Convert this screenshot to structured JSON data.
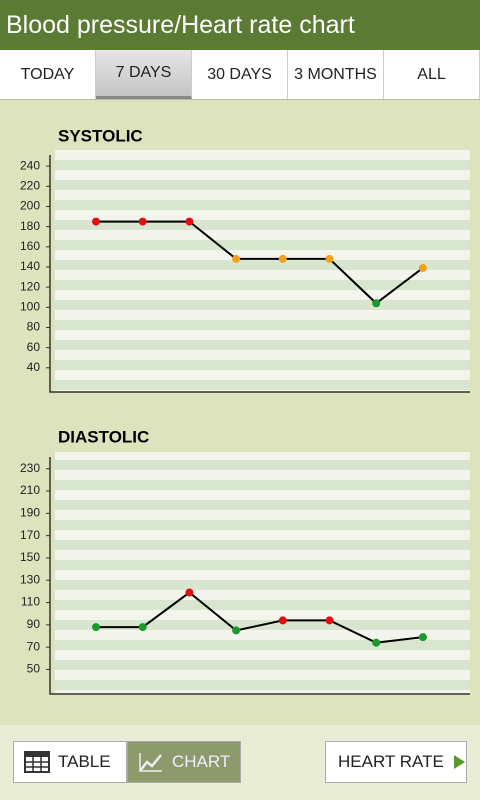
{
  "header": {
    "title": "Blood pressure/Heart rate chart"
  },
  "tabs": [
    "TODAY",
    "7 DAYS",
    "30 DAYS",
    "3 MONTHS",
    "ALL"
  ],
  "charts": [
    {
      "type": "line",
      "title": "SYSTOLIC",
      "ylim": [
        16,
        256
      ],
      "yticks": [
        40,
        60,
        80,
        100,
        120,
        140,
        160,
        180,
        200,
        220,
        240
      ],
      "values": [
        185,
        185,
        185,
        148,
        148,
        148,
        104,
        139
      ],
      "line_color": "#000000",
      "point_colors": [
        "#e01010",
        "#e01010",
        "#e01010",
        "#f0a020",
        "#f0a020",
        "#f0a020",
        "#1a9a2a",
        "#f0a020"
      ]
    },
    {
      "type": "line",
      "title": "DIASTOLIC",
      "ylim": [
        28,
        245
      ],
      "yticks": [
        50,
        70,
        90,
        110,
        130,
        150,
        170,
        190,
        210,
        230
      ],
      "values": [
        88,
        88,
        119,
        85,
        94,
        94,
        74,
        79
      ],
      "line_color": "#000000",
      "point_colors": [
        "#1a9a2a",
        "#1a9a2a",
        "#e01010",
        "#1a9a2a",
        "#e01010",
        "#e01010",
        "#1a9a2a",
        "#1a9a2a"
      ]
    }
  ],
  "footer": {
    "table": "TABLE",
    "chart": "CHART",
    "heart_rate": "HEART RATE"
  }
}
